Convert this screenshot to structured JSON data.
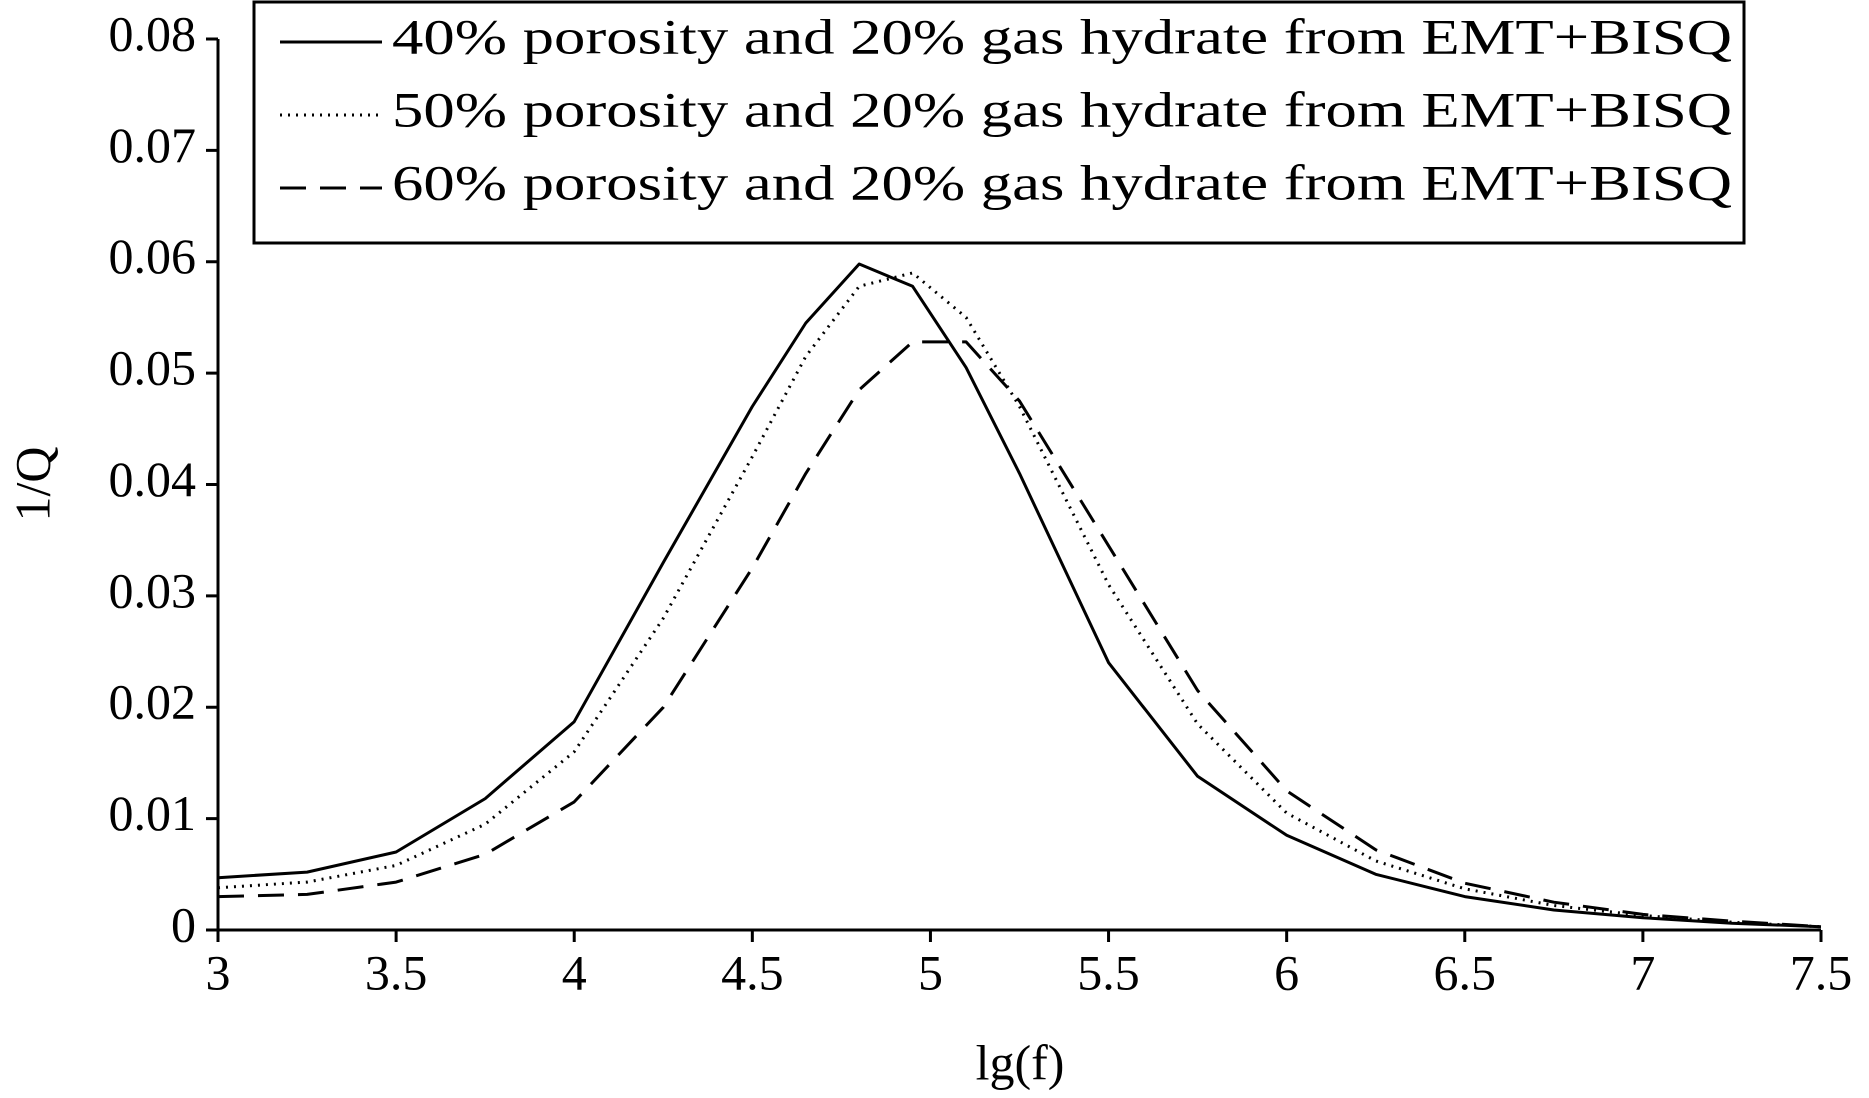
{
  "chart_data": {
    "type": "line",
    "x_label": "lg(f)",
    "y_label": "1/Q",
    "x": [
      3,
      3.25,
      3.5,
      3.75,
      4,
      4.25,
      4.5,
      4.65,
      4.8,
      4.95,
      5.1,
      5.25,
      5.5,
      5.75,
      6,
      6.25,
      6.5,
      6.75,
      7,
      7.25,
      7.5
    ],
    "series": [
      {
        "name": "40% porosity and 20% gas hydrate from EMT+BISQ",
        "color": "#000000",
        "dash": "solid",
        "values": [
          0.0047,
          0.0052,
          0.007,
          0.0118,
          0.0187,
          0.033,
          0.047,
          0.0545,
          0.0598,
          0.0578,
          0.0505,
          0.041,
          0.024,
          0.0138,
          0.0085,
          0.005,
          0.003,
          0.0018,
          0.0011,
          0.0006,
          0.0003
        ]
      },
      {
        "name": "50% porosity and 20% gas hydrate from EMT+BISQ",
        "color": "#000000",
        "dash": "dotted",
        "values": [
          0.0038,
          0.0043,
          0.0058,
          0.0095,
          0.016,
          0.028,
          0.0425,
          0.0515,
          0.0578,
          0.059,
          0.055,
          0.047,
          0.031,
          0.0185,
          0.0105,
          0.0062,
          0.0037,
          0.0022,
          0.0013,
          0.0007,
          0.0003
        ]
      },
      {
        "name": "60% porosity and 20% gas hydrate from EMT+BISQ",
        "color": "#000000",
        "dash": "dashed",
        "values": [
          0.003,
          0.0032,
          0.0043,
          0.0068,
          0.0115,
          0.02,
          0.0325,
          0.041,
          0.0485,
          0.0528,
          0.0528,
          0.0475,
          0.0345,
          0.0215,
          0.0125,
          0.0072,
          0.0042,
          0.0025,
          0.0014,
          0.0008,
          0.0003
        ]
      }
    ],
    "xlim": [
      3,
      7.5
    ],
    "xticks": [
      3,
      3.5,
      4,
      4.5,
      5,
      5.5,
      6,
      6.5,
      7,
      7.5
    ],
    "ylim": [
      0,
      0.08
    ],
    "yticks": [
      0,
      0.01,
      0.02,
      0.03,
      0.04,
      0.05,
      0.06,
      0.07,
      0.08
    ],
    "legend": "top"
  }
}
